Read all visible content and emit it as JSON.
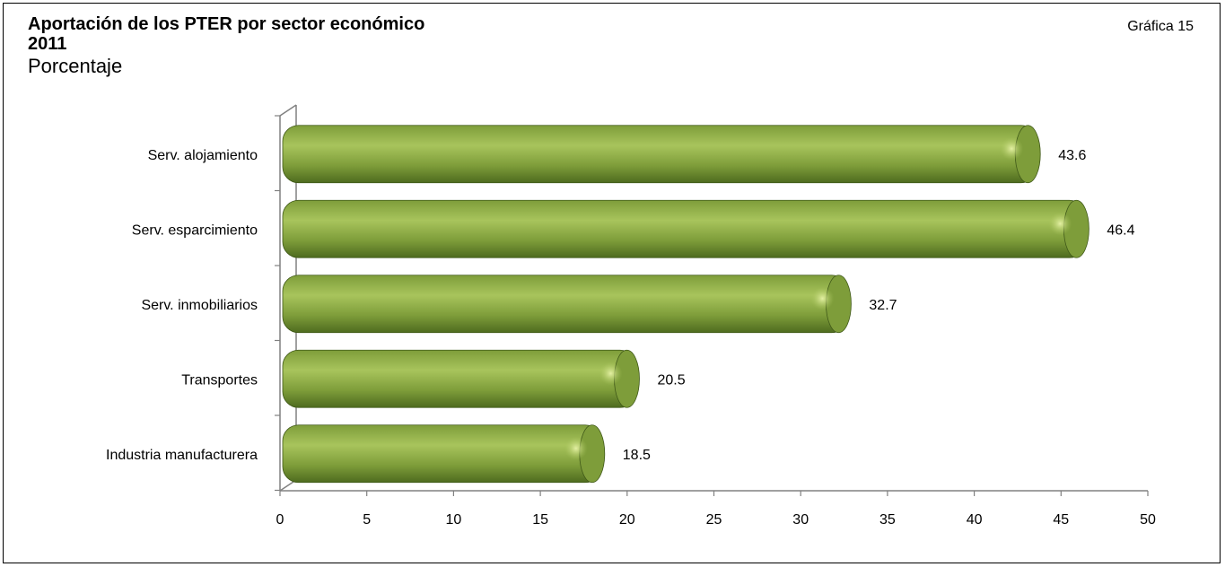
{
  "header": {
    "title": "Aportación de los PTER por sector económico",
    "year": "2011",
    "unit": "Porcentaje",
    "figure_number": "Gráfica 15"
  },
  "colors": {
    "bar_dark": "#4e6b1f",
    "bar_mid": "#7e9d3a",
    "bar_light": "#a8c45c",
    "axis": "#808080"
  },
  "chart_data": {
    "type": "bar",
    "orientation": "horizontal",
    "categories": [
      "Serv. alojamiento",
      "Serv. esparcimiento",
      "Serv. inmobiliarios",
      "Transportes",
      "Industria manufacturera"
    ],
    "values": [
      43.6,
      46.4,
      32.7,
      20.5,
      18.5
    ],
    "data_labels": [
      "43.6",
      "46.4",
      "32.7",
      "20.5",
      "18.5"
    ],
    "xlim": [
      0,
      50
    ],
    "xticks": [
      0,
      5,
      10,
      15,
      20,
      25,
      30,
      35,
      40,
      45,
      50
    ],
    "grid": false,
    "legend": "none"
  }
}
